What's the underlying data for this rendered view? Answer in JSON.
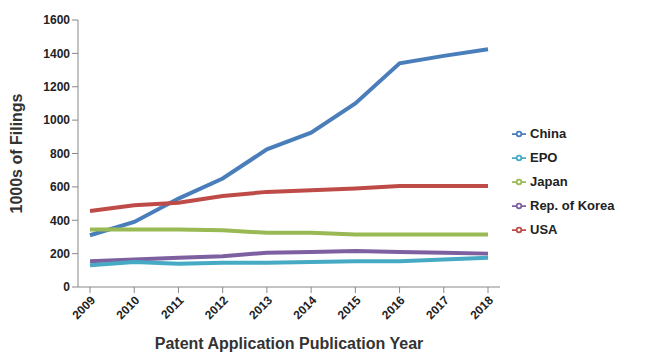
{
  "chart_data": {
    "type": "line",
    "x_label": "Patent Application Publication Year",
    "y_label": "1000s of Filings",
    "categories": [
      "2009",
      "2010",
      "2011",
      "2012",
      "2013",
      "2014",
      "2015",
      "2016",
      "2017",
      "2018"
    ],
    "series": [
      {
        "name": "China",
        "color": "#4a7ebb",
        "values": [
          310,
          390,
          530,
          650,
          825,
          925,
          1100,
          1340,
          1385,
          1425
        ]
      },
      {
        "name": "USA",
        "color": "#be4b48",
        "values": [
          455,
          490,
          505,
          545,
          570,
          580,
          590,
          605,
          605,
          605
        ]
      },
      {
        "name": "Japan",
        "color": "#98b954",
        "values": [
          345,
          345,
          345,
          340,
          325,
          325,
          315,
          315,
          315,
          315
        ]
      },
      {
        "name": "Rep. of Korea",
        "color": "#7d60a0",
        "values": [
          155,
          165,
          175,
          185,
          205,
          210,
          215,
          210,
          205,
          200
        ]
      },
      {
        "name": "EPO",
        "color": "#46aac5",
        "values": [
          130,
          150,
          140,
          145,
          145,
          150,
          155,
          155,
          165,
          175
        ]
      }
    ],
    "ylim": [
      0,
      1600
    ],
    "yticks": [
      0,
      200,
      400,
      600,
      800,
      1000,
      1200,
      1400,
      1600
    ],
    "grid": false,
    "legend": "right"
  }
}
